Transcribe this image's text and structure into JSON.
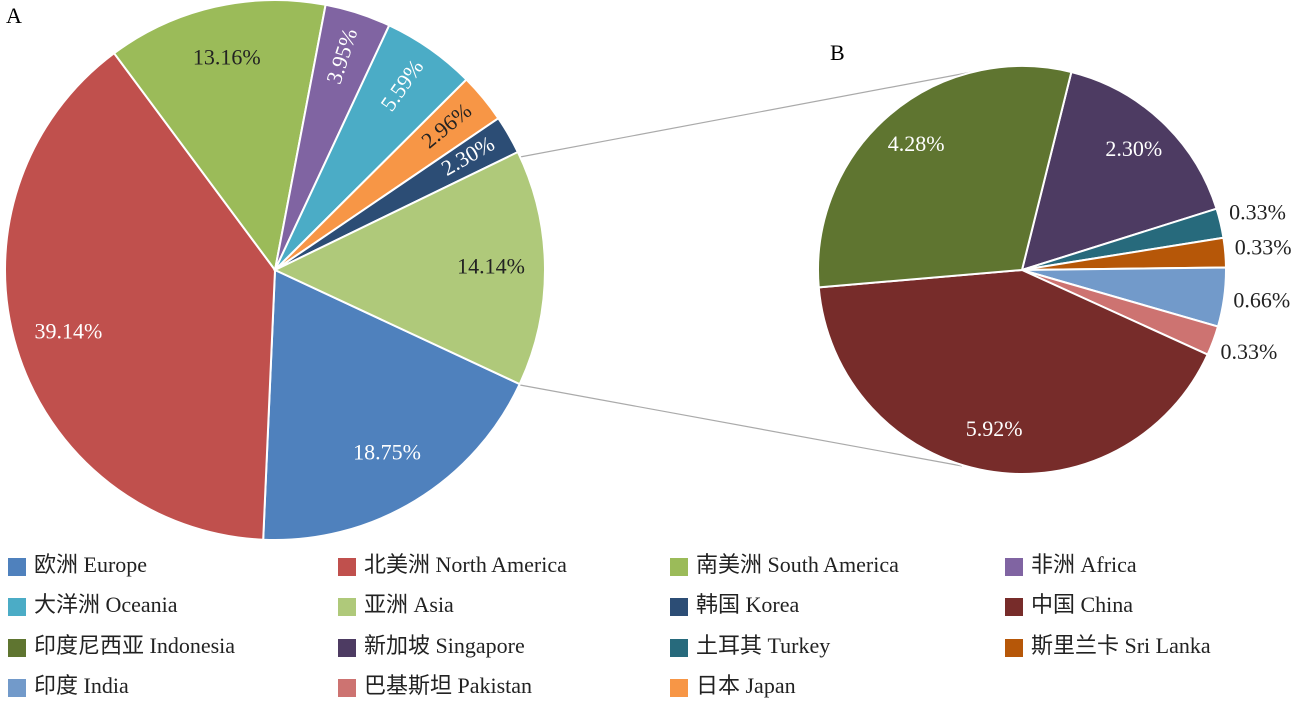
{
  "chart_data": [
    {
      "type": "pie",
      "title": "A",
      "categories": [
        "欧洲 Europe",
        "北美洲 North America",
        "南美洲 South America",
        "非洲 Africa",
        "大洋洲 Oceania",
        "日本 Japan",
        "韩国 Korea",
        "亚洲 Asia"
      ],
      "values": [
        18.75,
        39.14,
        13.16,
        3.95,
        5.59,
        2.96,
        2.3,
        14.14
      ],
      "value_labels": [
        "18.75%",
        "39.14%",
        "13.16%",
        "3.95%",
        "5.59%",
        "2.96%",
        "2.30%",
        "14.14%"
      ],
      "colors": [
        "#4f81bd",
        "#c0504d",
        "#9bbb59",
        "#8064a2",
        "#4bacc6",
        "#f79646",
        "#2c4d75",
        "#afc97a"
      ]
    },
    {
      "type": "pie",
      "title": "B",
      "categories": [
        "新加坡 Singapore",
        "土耳其 Turkey",
        "斯里兰卡 Sri Lanka",
        "印度 India",
        "巴基斯坦 Pakistan",
        "中国 China",
        "印度尼西亚 Indonesia"
      ],
      "values": [
        2.3,
        0.33,
        0.33,
        0.66,
        0.33,
        5.92,
        4.28
      ],
      "value_labels": [
        "2.30%",
        "0.33%",
        "0.33%",
        "0.66%",
        "0.33%",
        "5.92%",
        "4.28%"
      ],
      "colors": [
        "#4d3b62",
        "#276a7c",
        "#b65708",
        "#729aca",
        "#cd7371",
        "#772c2a",
        "#5f7530"
      ]
    }
  ]
}
